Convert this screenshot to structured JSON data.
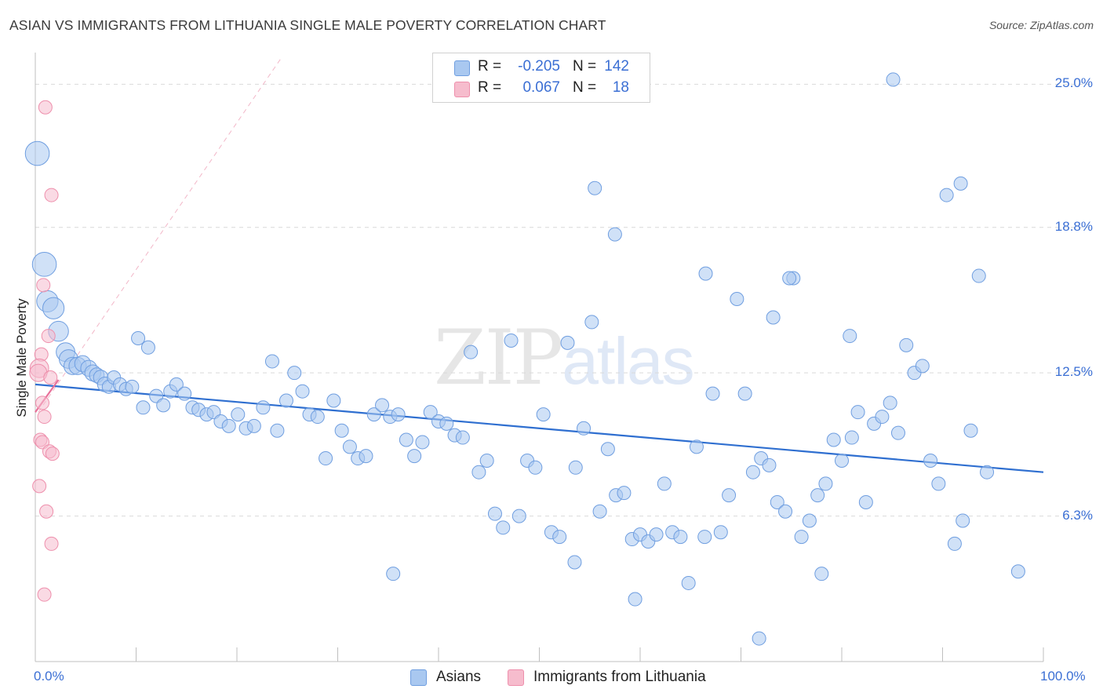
{
  "title": "ASIAN VS IMMIGRANTS FROM LITHUANIA SINGLE MALE POVERTY CORRELATION CHART",
  "source": "Source: ZipAtlas.com",
  "watermark": {
    "zip": "ZIP",
    "atlas": "atlas"
  },
  "legend": {
    "rows": [
      {
        "r_label": "R =",
        "r_value": "-0.205",
        "n_label": "N =",
        "n_value": "142",
        "color": "#a9c8f0",
        "edge": "#6f9ee0"
      },
      {
        "r_label": "R =",
        "r_value": "0.067",
        "n_label": "N =",
        "n_value": "18",
        "color": "#f6bccd",
        "edge": "#ee8fac"
      }
    ]
  },
  "bottom_legend": [
    {
      "label": "Asians",
      "color": "#a9c8f0",
      "edge": "#6f9ee0"
    },
    {
      "label": "Immigrants from Lithuania",
      "color": "#f6bccd",
      "edge": "#ee8fac"
    }
  ],
  "chart_data": {
    "type": "scatter",
    "xlabel": "",
    "ylabel": "Single Male Poverty",
    "xlim": [
      0,
      100
    ],
    "ylim": [
      0,
      26.2
    ],
    "x_tick_labels": [
      "0.0%",
      "100.0%"
    ],
    "y_ticks": [
      6.3,
      12.5,
      18.8,
      25.0
    ],
    "y_tick_labels": [
      "6.3%",
      "12.5%",
      "18.8%",
      "25.0%"
    ],
    "grid": true,
    "series": [
      {
        "name": "Asians",
        "color": "#6f9ee0",
        "fill": "#a9c8f0",
        "trend": {
          "x": [
            0,
            100
          ],
          "y": [
            12.0,
            8.2
          ]
        },
        "points": [
          [
            0.2,
            22.0,
            1.8
          ],
          [
            0.9,
            17.2,
            1.8
          ],
          [
            1.2,
            15.6,
            1.6
          ],
          [
            1.8,
            15.3,
            1.6
          ],
          [
            2.3,
            14.3,
            1.5
          ],
          [
            3.0,
            13.4,
            1.4
          ],
          [
            3.3,
            13.1,
            1.4
          ],
          [
            3.7,
            12.8,
            1.3
          ],
          [
            4.2,
            12.8,
            1.3
          ],
          [
            4.7,
            12.9,
            1.2
          ],
          [
            5.3,
            12.7,
            1.2
          ],
          [
            5.7,
            12.5,
            1.2
          ],
          [
            6.1,
            12.4,
            1.1
          ],
          [
            6.5,
            12.3,
            1.1
          ],
          [
            6.9,
            12.0,
            1.1
          ],
          [
            7.3,
            11.9,
            1.0
          ],
          [
            7.8,
            12.3,
            1.0
          ],
          [
            8.4,
            12.0,
            1.0
          ],
          [
            9.0,
            11.8,
            1.0
          ],
          [
            9.6,
            11.9,
            1.0
          ],
          [
            10.2,
            14.0,
            1.0
          ],
          [
            10.7,
            11.0,
            1.0
          ],
          [
            11.2,
            13.6,
            1.0
          ],
          [
            12.0,
            11.5,
            1.0
          ],
          [
            12.7,
            11.1,
            1.0
          ],
          [
            13.4,
            11.7,
            1.0
          ],
          [
            14.0,
            12.0,
            1.0
          ],
          [
            14.8,
            11.6,
            1.0
          ],
          [
            15.6,
            11.0,
            1.0
          ],
          [
            16.2,
            10.9,
            1.0
          ],
          [
            17.0,
            10.7,
            1.0
          ],
          [
            17.7,
            10.8,
            1.0
          ],
          [
            18.4,
            10.4,
            1.0
          ],
          [
            19.2,
            10.2,
            1.0
          ],
          [
            20.1,
            10.7,
            1.0
          ],
          [
            20.9,
            10.1,
            1.0
          ],
          [
            21.7,
            10.2,
            1.0
          ],
          [
            22.6,
            11.0,
            1.0
          ],
          [
            23.5,
            13.0,
            1.0
          ],
          [
            24.0,
            10.0,
            1.0
          ],
          [
            24.9,
            11.3,
            1.0
          ],
          [
            25.7,
            12.5,
            1.0
          ],
          [
            26.5,
            11.7,
            1.0
          ],
          [
            27.2,
            10.7,
            1.0
          ],
          [
            28.0,
            10.6,
            1.0
          ],
          [
            28.8,
            8.8,
            1.0
          ],
          [
            29.6,
            11.3,
            1.0
          ],
          [
            30.4,
            10.0,
            1.0
          ],
          [
            31.2,
            9.3,
            1.0
          ],
          [
            32.0,
            8.8,
            1.0
          ],
          [
            32.8,
            8.9,
            1.0
          ],
          [
            33.6,
            10.7,
            1.0
          ],
          [
            34.4,
            11.1,
            1.0
          ],
          [
            35.2,
            10.6,
            1.0
          ],
          [
            36.0,
            10.7,
            1.0
          ],
          [
            36.8,
            9.6,
            1.0
          ],
          [
            37.6,
            8.9,
            1.0
          ],
          [
            38.4,
            9.5,
            1.0
          ],
          [
            39.2,
            10.8,
            1.0
          ],
          [
            40.0,
            10.4,
            1.0
          ],
          [
            40.8,
            10.3,
            1.0
          ],
          [
            41.6,
            9.8,
            1.0
          ],
          [
            42.4,
            9.7,
            1.0
          ],
          [
            43.2,
            13.4,
            1.0
          ],
          [
            44.0,
            8.2,
            1.0
          ],
          [
            44.8,
            8.7,
            1.0
          ],
          [
            45.6,
            6.4,
            1.0
          ],
          [
            46.4,
            5.8,
            1.0
          ],
          [
            47.2,
            13.9,
            1.0
          ],
          [
            48.0,
            6.3,
            1.0
          ],
          [
            48.8,
            8.7,
            1.0
          ],
          [
            49.6,
            8.4,
            1.0
          ],
          [
            50.4,
            10.7,
            1.0
          ],
          [
            51.2,
            5.6,
            1.0
          ],
          [
            52.0,
            5.4,
            1.0
          ],
          [
            52.8,
            13.8,
            1.0
          ],
          [
            53.6,
            8.4,
            1.0
          ],
          [
            54.4,
            10.1,
            1.0
          ],
          [
            55.2,
            14.7,
            1.0
          ],
          [
            56.0,
            6.5,
            1.0
          ],
          [
            56.8,
            9.2,
            1.0
          ],
          [
            57.6,
            7.2,
            1.0
          ],
          [
            58.4,
            7.3,
            1.0
          ],
          [
            59.2,
            5.3,
            1.0
          ],
          [
            60.0,
            5.5,
            1.0
          ],
          [
            60.8,
            5.2,
            1.0
          ],
          [
            61.6,
            5.5,
            1.0
          ],
          [
            62.4,
            7.7,
            1.0
          ],
          [
            63.2,
            5.6,
            1.0
          ],
          [
            64.0,
            5.4,
            1.0
          ],
          [
            64.8,
            3.4,
            1.0
          ],
          [
            65.6,
            9.3,
            1.0
          ],
          [
            66.4,
            5.4,
            1.0
          ],
          [
            67.2,
            11.6,
            1.0
          ],
          [
            68.0,
            5.6,
            1.0
          ],
          [
            68.8,
            7.2,
            1.0
          ],
          [
            69.6,
            15.7,
            1.0
          ],
          [
            70.4,
            11.6,
            1.0
          ],
          [
            71.2,
            8.2,
            1.0
          ],
          [
            72.0,
            8.8,
            1.0
          ],
          [
            72.8,
            8.5,
            1.0
          ],
          [
            73.6,
            6.9,
            1.0
          ],
          [
            74.4,
            6.5,
            1.0
          ],
          [
            75.2,
            16.6,
            1.0
          ],
          [
            76.0,
            5.4,
            1.0
          ],
          [
            76.8,
            6.1,
            1.0
          ],
          [
            77.6,
            7.2,
            1.0
          ],
          [
            78.4,
            7.7,
            1.0
          ],
          [
            79.2,
            9.6,
            1.0
          ],
          [
            80.0,
            8.7,
            1.0
          ],
          [
            80.8,
            14.1,
            1.0
          ],
          [
            81.6,
            10.8,
            1.0
          ],
          [
            82.4,
            6.9,
            1.0
          ],
          [
            83.2,
            10.3,
            1.0
          ],
          [
            84.0,
            10.6,
            1.0
          ],
          [
            84.8,
            11.2,
            1.0
          ],
          [
            85.6,
            9.9,
            1.0
          ],
          [
            86.4,
            13.7,
            1.0
          ],
          [
            87.2,
            12.5,
            1.0
          ],
          [
            88.0,
            12.8,
            1.0
          ],
          [
            88.8,
            8.7,
            1.0
          ],
          [
            89.6,
            7.7,
            1.0
          ],
          [
            90.4,
            20.2,
            1.0
          ],
          [
            91.2,
            5.1,
            1.0
          ],
          [
            92.0,
            6.1,
            1.0
          ],
          [
            92.8,
            10.0,
            1.0
          ],
          [
            93.6,
            16.7,
            1.0
          ],
          [
            94.4,
            8.2,
            1.0
          ],
          [
            53.5,
            4.3,
            1.0
          ],
          [
            55.5,
            20.5,
            1.0
          ],
          [
            57.5,
            18.5,
            1.0
          ],
          [
            59.5,
            2.7,
            1.0
          ],
          [
            66.5,
            16.8,
            1.0
          ],
          [
            71.8,
            1.0,
            1.0
          ],
          [
            73.2,
            14.9,
            1.0
          ],
          [
            74.8,
            16.6,
            1.0
          ],
          [
            78.0,
            3.8,
            1.0
          ],
          [
            81.0,
            9.7,
            1.0
          ],
          [
            35.5,
            3.8,
            1.0
          ],
          [
            91.8,
            20.7,
            1.0
          ],
          [
            97.5,
            3.9,
            1.0
          ],
          [
            85.1,
            25.2,
            1.0
          ]
        ]
      },
      {
        "name": "Immigrants from Lithuania",
        "color": "#ee8fac",
        "fill": "#f6bccd",
        "trend": {
          "x": [
            0,
            2.3
          ],
          "y": [
            10.8,
            12.2
          ]
        },
        "points": [
          [
            1.0,
            24.0,
            1.0
          ],
          [
            1.6,
            20.2,
            1.0
          ],
          [
            0.8,
            16.3,
            1.0
          ],
          [
            1.3,
            14.1,
            1.0
          ],
          [
            0.6,
            13.3,
            1.0
          ],
          [
            0.4,
            12.7,
            1.4
          ],
          [
            0.3,
            12.5,
            1.3
          ],
          [
            1.5,
            12.3,
            1.0
          ],
          [
            0.7,
            11.2,
            1.0
          ],
          [
            0.9,
            10.6,
            1.0
          ],
          [
            0.5,
            9.6,
            1.0
          ],
          [
            0.7,
            9.5,
            1.0
          ],
          [
            1.4,
            9.1,
            1.0
          ],
          [
            1.7,
            9.0,
            1.0
          ],
          [
            0.4,
            7.6,
            1.0
          ],
          [
            1.1,
            6.5,
            1.0
          ],
          [
            1.6,
            5.1,
            1.0
          ],
          [
            0.9,
            2.9,
            1.0
          ]
        ]
      }
    ]
  }
}
